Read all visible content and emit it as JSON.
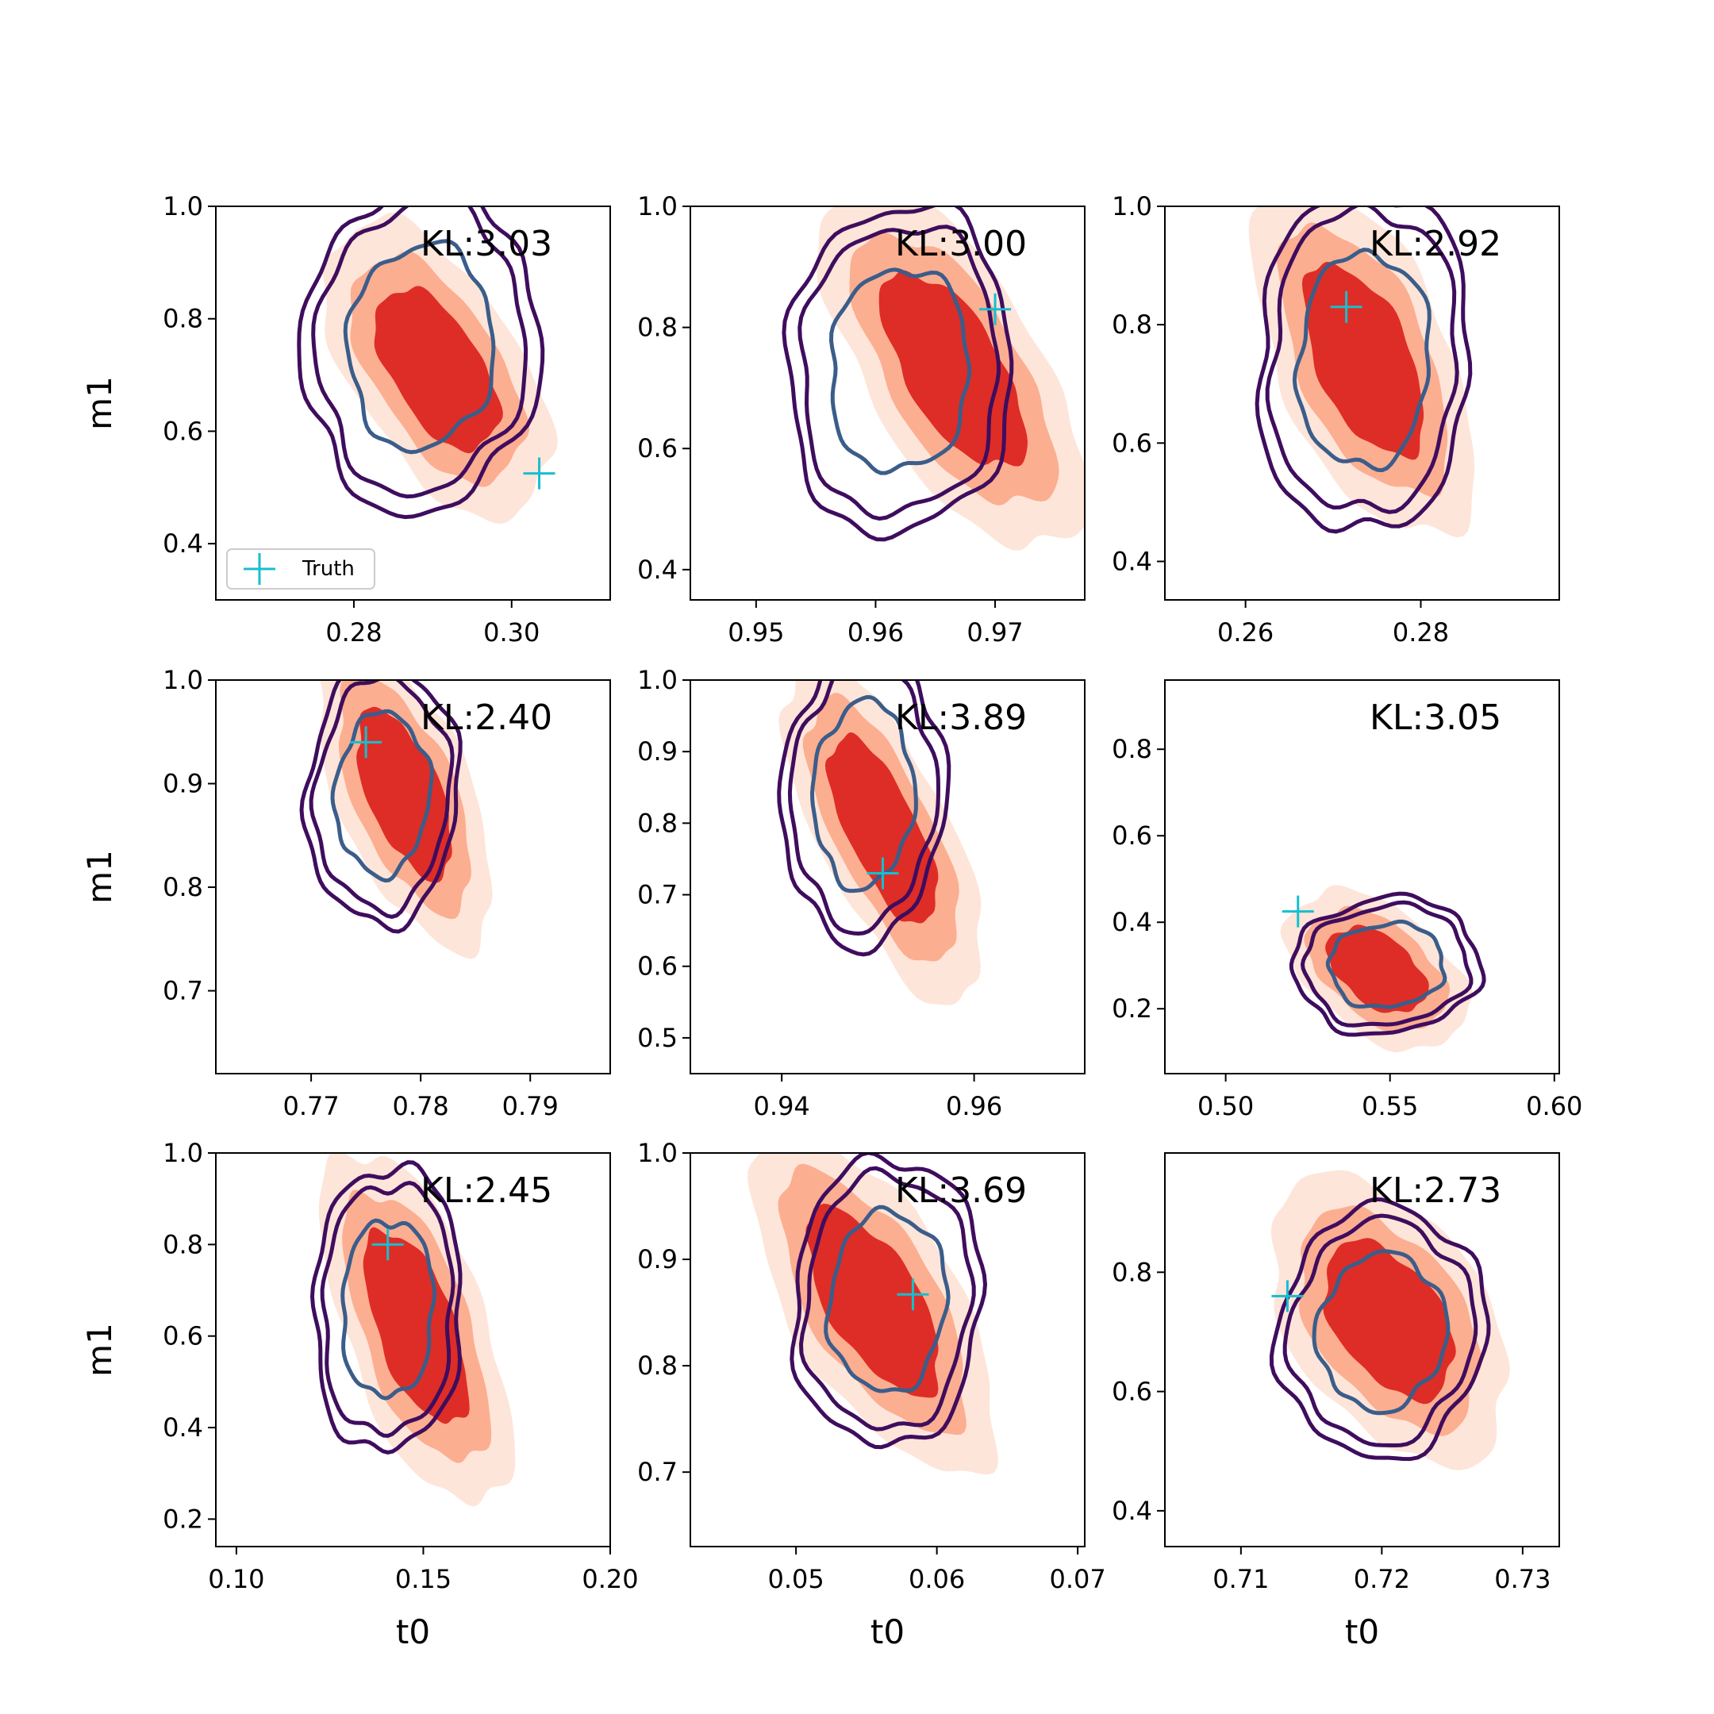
{
  "figure": {
    "colors": {
      "fill_outer": "#fee5d9",
      "fill_mid": "#fcae91",
      "fill_inner": "#de2d26",
      "contour_outer": "#3f0d5e",
      "contour_inner": "#3b5d8a",
      "truth": "#17becf",
      "axis": "#000000"
    }
  },
  "chart_data": [
    {
      "type": "contour",
      "xlabel": "",
      "ylabel": "m1",
      "annotation": "KL:3.03",
      "xlim": [
        0.2625,
        0.3125
      ],
      "ylim": [
        0.3,
        1.0
      ],
      "xticks": [
        "0.28",
        "0.30"
      ],
      "xtick_values": [
        0.28,
        0.3
      ],
      "yticks": [
        "0.4",
        "0.6",
        "0.8",
        "1.0"
      ],
      "ytick_values": [
        0.4,
        0.6,
        0.8,
        1.0
      ],
      "center": [
        0.2905,
        0.71
      ],
      "spread": [
        0.0062,
        0.115
      ],
      "corr": -0.55,
      "contour_center": [
        0.2885,
        0.75
      ],
      "contour_spread": [
        0.0071,
        0.14
      ],
      "truth": [
        0.3035,
        0.525
      ],
      "legend": {
        "label": "Truth"
      }
    },
    {
      "type": "contour",
      "xlabel": "",
      "ylabel": "",
      "annotation": "KL:3.00",
      "xlim": [
        0.9445,
        0.9775
      ],
      "ylim": [
        0.35,
        1.0
      ],
      "xticks": [
        "0.95",
        "0.96",
        "0.97"
      ],
      "xtick_values": [
        0.95,
        0.96,
        0.97
      ],
      "yticks": [
        "0.4",
        "0.6",
        "0.8",
        "1.0"
      ],
      "ytick_values": [
        0.4,
        0.6,
        0.8,
        1.0
      ],
      "center": [
        0.9665,
        0.73
      ],
      "spread": [
        0.0048,
        0.13
      ],
      "corr": -0.65,
      "contour_center": [
        0.962,
        0.73
      ],
      "contour_spread": [
        0.0045,
        0.13
      ],
      "truth": [
        0.97,
        0.83
      ]
    },
    {
      "type": "contour",
      "xlabel": "",
      "ylabel": "",
      "annotation": "KL:2.92",
      "xlim": [
        0.2508,
        0.2958
      ],
      "ylim": [
        0.335,
        1.0
      ],
      "xticks": [
        "0.26",
        "0.28"
      ],
      "xtick_values": [
        0.26,
        0.28
      ],
      "yticks": [
        "0.4",
        "0.6",
        "0.8",
        "1.0"
      ],
      "ytick_values": [
        0.4,
        0.6,
        0.8,
        1.0
      ],
      "center": [
        0.2735,
        0.74
      ],
      "spread": [
        0.0055,
        0.13
      ],
      "corr": -0.55,
      "contour_center": [
        0.2735,
        0.74
      ],
      "contour_spread": [
        0.0058,
        0.14
      ],
      "truth": [
        0.2715,
        0.83
      ]
    },
    {
      "type": "contour",
      "xlabel": "",
      "ylabel": "m1",
      "annotation": "KL:2.40",
      "xlim": [
        0.7613,
        0.7973
      ],
      "ylim": [
        0.62,
        1.0
      ],
      "xticks": [
        "0.77",
        "0.78",
        "0.79"
      ],
      "xtick_values": [
        0.77,
        0.78,
        0.79
      ],
      "yticks": [
        "0.7",
        "0.8",
        "0.9",
        "1.0"
      ],
      "ytick_values": [
        0.7,
        0.8,
        0.9,
        1.0
      ],
      "center": [
        0.7785,
        0.89
      ],
      "spread": [
        0.0035,
        0.065
      ],
      "corr": -0.6,
      "contour_center": [
        0.7765,
        0.89
      ],
      "contour_spread": [
        0.0033,
        0.06
      ],
      "truth": [
        0.775,
        0.94
      ]
    },
    {
      "type": "contour",
      "xlabel": "",
      "ylabel": "",
      "annotation": "KL:3.89",
      "xlim": [
        0.9305,
        0.9715
      ],
      "ylim": [
        0.45,
        1.0
      ],
      "xticks": [
        "0.94",
        "0.96"
      ],
      "xtick_values": [
        0.94,
        0.96
      ],
      "yticks": [
        "0.5",
        "0.6",
        "0.7",
        "0.8",
        "0.9",
        "1.0"
      ],
      "ytick_values": [
        0.5,
        0.6,
        0.7,
        0.8,
        0.9,
        1.0
      ],
      "center": [
        0.9505,
        0.79
      ],
      "spread": [
        0.0045,
        0.105
      ],
      "corr": -0.7,
      "contour_center": [
        0.9485,
        0.84
      ],
      "contour_spread": [
        0.004,
        0.1
      ],
      "truth": [
        0.9505,
        0.73
      ]
    },
    {
      "type": "contour",
      "xlabel": "",
      "ylabel": "",
      "annotation": "KL:3.05",
      "xlim": [
        0.4815,
        0.6015
      ],
      "ylim": [
        0.05,
        0.96
      ],
      "xticks": [
        "0.50",
        "0.55",
        "0.60"
      ],
      "xtick_values": [
        0.5,
        0.55,
        0.6
      ],
      "yticks": [
        "0.2",
        "0.4",
        "0.6",
        "0.8"
      ],
      "ytick_values": [
        0.2,
        0.4,
        0.6,
        0.8
      ],
      "center": [
        0.546,
        0.29
      ],
      "spread": [
        0.012,
        0.08
      ],
      "corr": -0.45,
      "contour_center": [
        0.549,
        0.3
      ],
      "contour_spread": [
        0.0135,
        0.075
      ],
      "truth": [
        0.522,
        0.425
      ]
    },
    {
      "type": "contour",
      "xlabel": "t0",
      "ylabel": "m1",
      "annotation": "KL:2.45",
      "xlim": [
        0.0945,
        0.2
      ],
      "ylim": [
        0.14,
        1.0
      ],
      "xticks": [
        "0.10",
        "0.15",
        "0.20"
      ],
      "xtick_values": [
        0.1,
        0.15,
        0.2
      ],
      "yticks": [
        "0.2",
        "0.4",
        "0.6",
        "0.8",
        "1.0"
      ],
      "ytick_values": [
        0.2,
        0.4,
        0.6,
        0.8,
        1.0
      ],
      "center": [
        0.148,
        0.62
      ],
      "spread": [
        0.011,
        0.17
      ],
      "corr": -0.6,
      "contour_center": [
        0.1405,
        0.66
      ],
      "contour_spread": [
        0.0095,
        0.15
      ],
      "truth": [
        0.1405,
        0.8
      ]
    },
    {
      "type": "contour",
      "xlabel": "t0",
      "ylabel": "",
      "annotation": "KL:3.69",
      "xlim": [
        0.0425,
        0.0705
      ],
      "ylim": [
        0.63,
        1.0
      ],
      "xticks": [
        "0.05",
        "0.06",
        "0.07"
      ],
      "xtick_values": [
        0.05,
        0.06,
        0.07
      ],
      "yticks": [
        "0.7",
        "0.8",
        "0.9",
        "1.0"
      ],
      "ytick_values": [
        0.7,
        0.8,
        0.9,
        1.0
      ],
      "center": [
        0.0555,
        0.86
      ],
      "spread": [
        0.0038,
        0.07
      ],
      "corr": -0.65,
      "contour_center": [
        0.0565,
        0.86
      ],
      "contour_spread": [
        0.0032,
        0.065
      ],
      "truth": [
        0.0583,
        0.867
      ]
    },
    {
      "type": "contour",
      "xlabel": "t0",
      "ylabel": "",
      "annotation": "KL:2.73",
      "xlim": [
        0.7046,
        0.7326
      ],
      "ylim": [
        0.34,
        1.0
      ],
      "xticks": [
        "0.71",
        "0.72",
        "0.73"
      ],
      "xtick_values": [
        0.71,
        0.72,
        0.73
      ],
      "yticks": [
        "0.4",
        "0.6",
        "0.8"
      ],
      "ytick_values": [
        0.4,
        0.6,
        0.8
      ],
      "center": [
        0.7205,
        0.72
      ],
      "spread": [
        0.0037,
        0.105
      ],
      "corr": -0.45,
      "contour_center": [
        0.72,
        0.7
      ],
      "contour_spread": [
        0.0035,
        0.1
      ],
      "truth": [
        0.7133,
        0.76
      ]
    }
  ]
}
